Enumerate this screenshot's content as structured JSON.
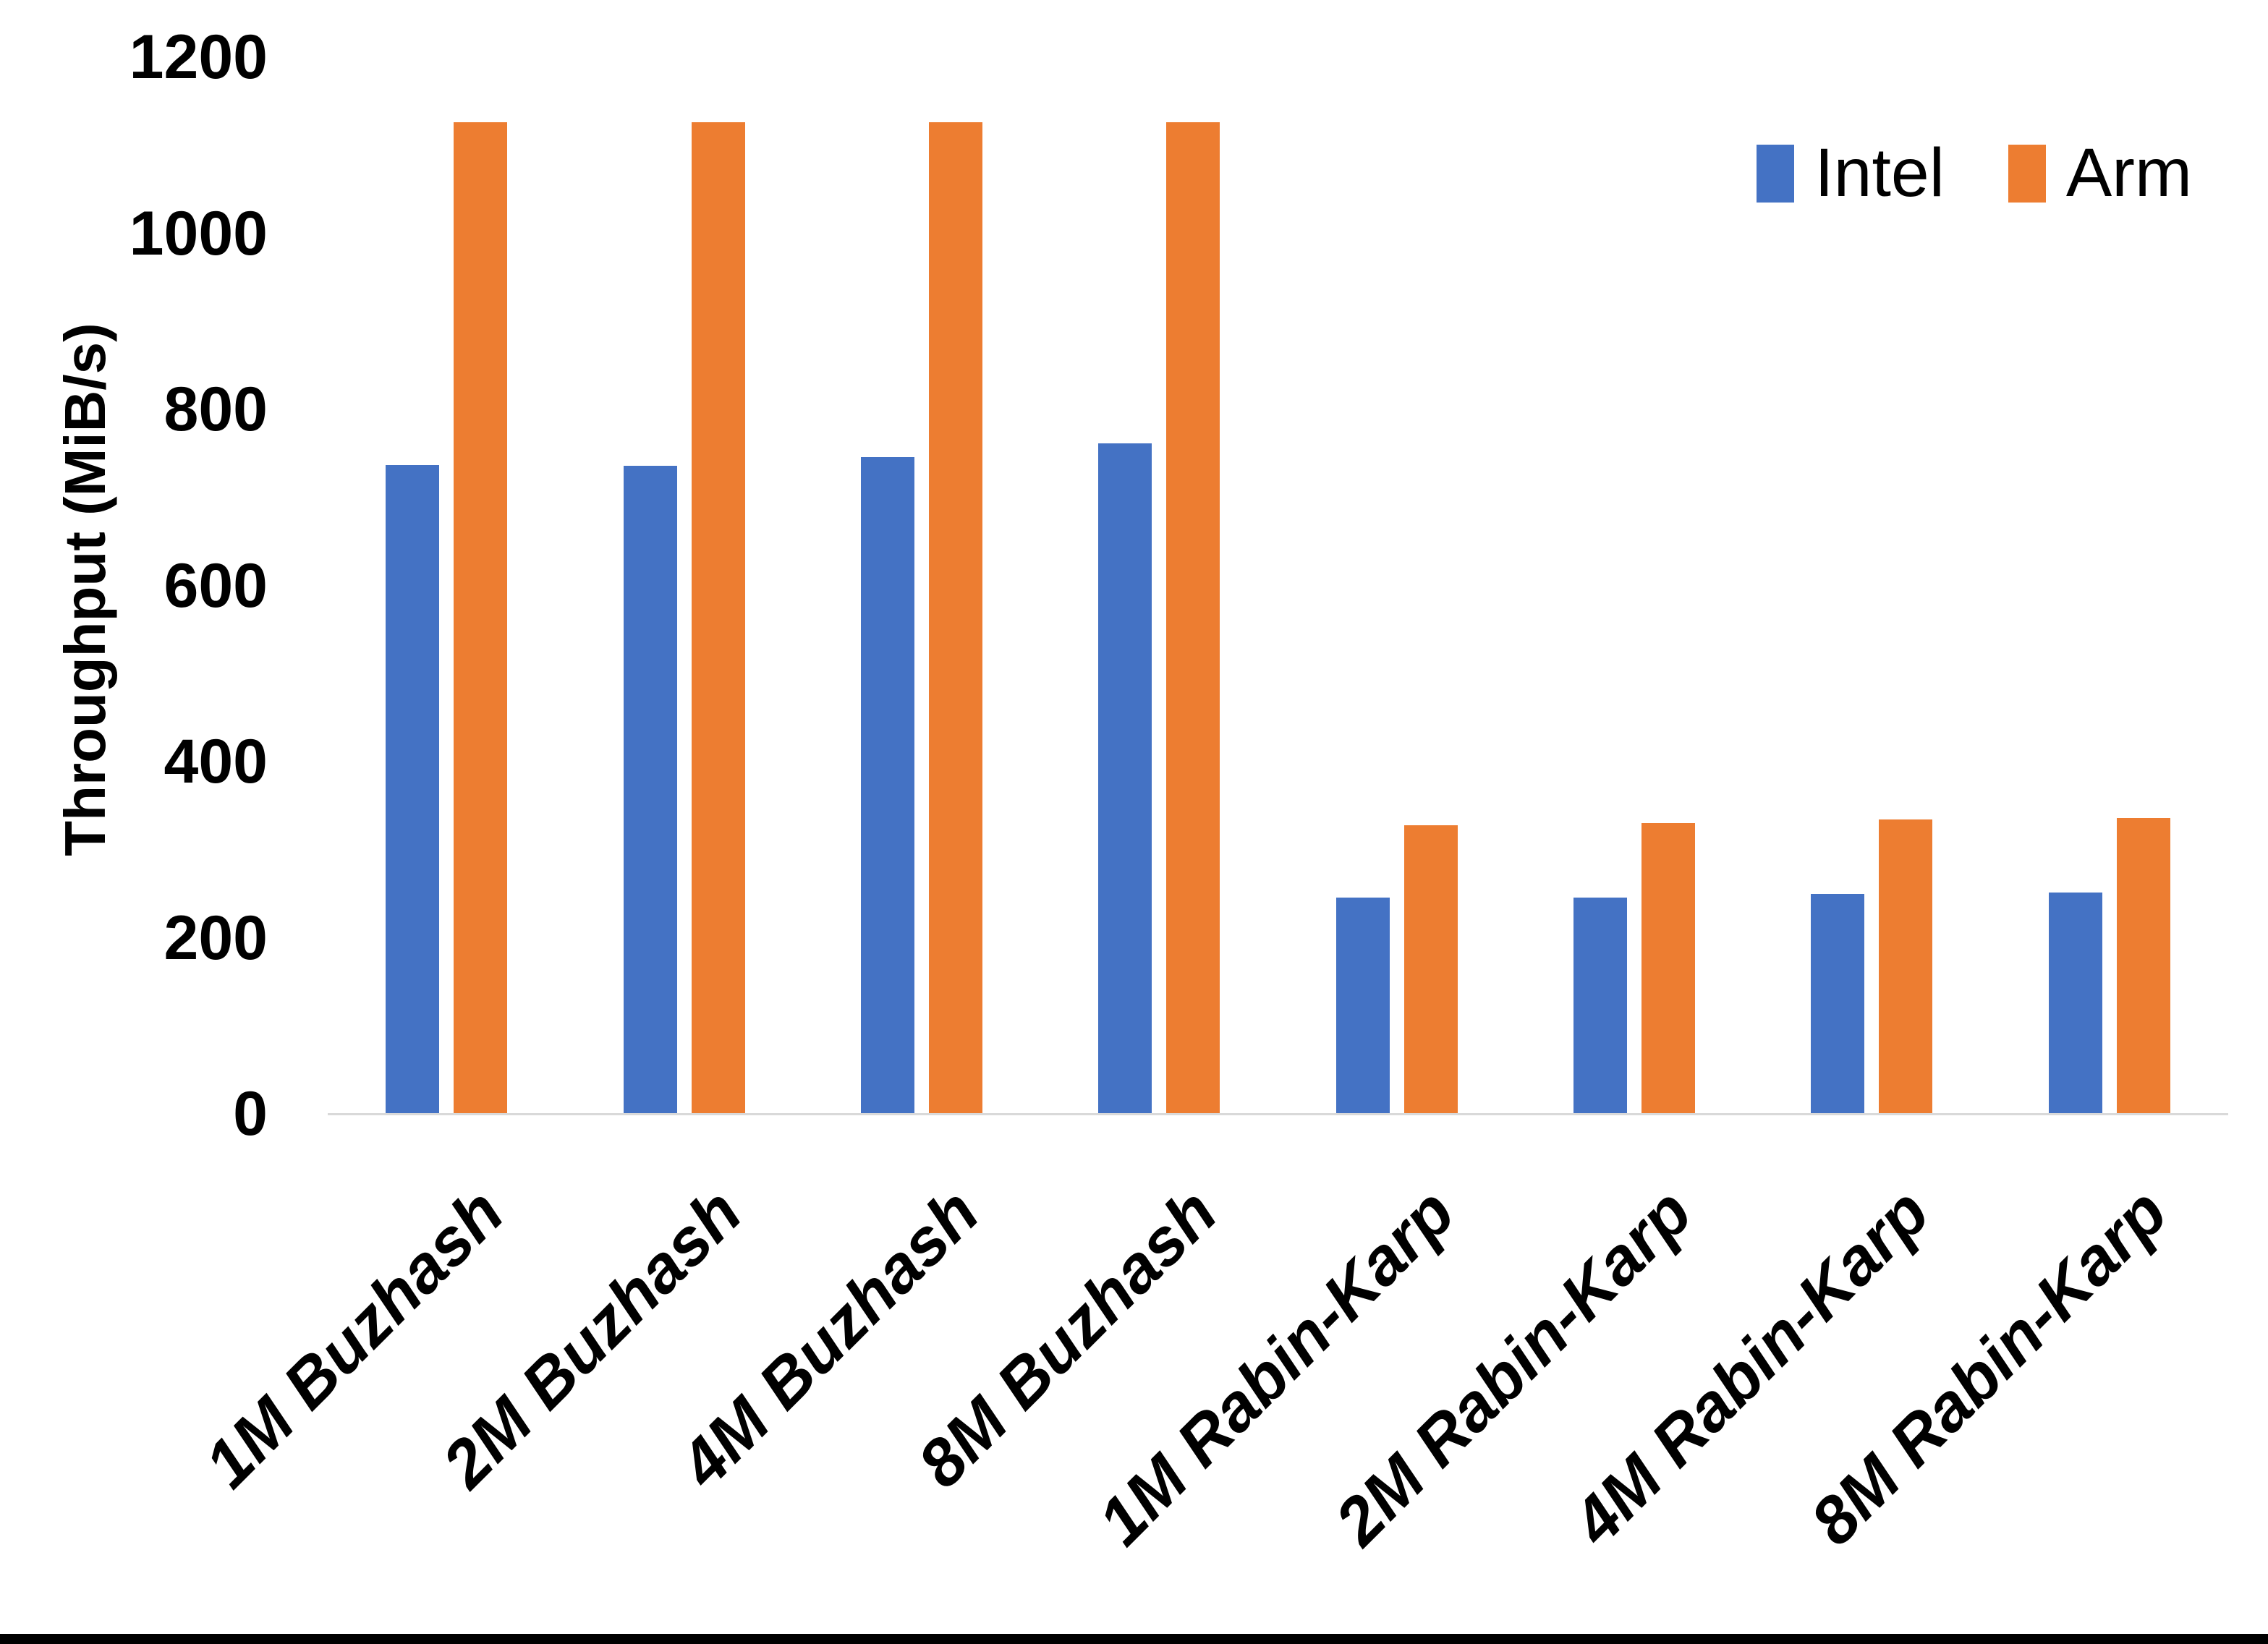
{
  "chart_data": {
    "type": "bar",
    "title": "",
    "xlabel": "",
    "ylabel": "Throughput (MiB/s)",
    "ylim": [
      0,
      1200
    ],
    "yticks": [
      0,
      200,
      400,
      600,
      800,
      1000,
      1200
    ],
    "grid": false,
    "legend_position": "top-right",
    "axis_line_color": "#d9d9d9",
    "background_color": "#ffffff",
    "text_color": "#000000",
    "categories": [
      "1M Buzhash",
      "2M Buzhash",
      "4M Buzhash",
      "8M Buzhash",
      "1M Rabin-Karp",
      "2M Rabin-Karp",
      "4M Rabin-Karp",
      "8M Rabin-Karp"
    ],
    "series": [
      {
        "name": "Intel",
        "color": "#4472c4",
        "values": [
          737,
          736,
          746,
          761,
          246,
          246,
          250,
          251
        ]
      },
      {
        "name": "Arm",
        "color": "#ed7d31",
        "values": [
          1126,
          1126,
          1126,
          1126,
          328,
          330,
          334,
          336
        ]
      }
    ]
  }
}
